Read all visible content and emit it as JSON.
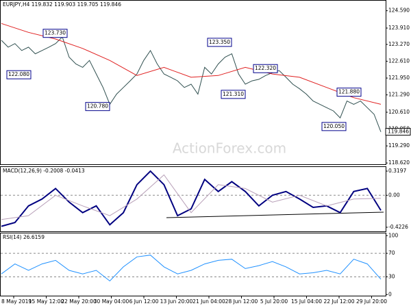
{
  "chart_data": [
    {
      "type": "line",
      "title": "EURJPY,H4  119.832 119.903 119.705 119.846",
      "watermark": "ActionForex.com",
      "ylim": [
        118.57,
        125.01
      ],
      "yticks": [
        {
          "value": 124.59,
          "label": "124.590"
        },
        {
          "value": 123.91,
          "label": "123.910"
        },
        {
          "value": 123.27,
          "label": "123.270"
        },
        {
          "value": 122.61,
          "label": "122.610"
        },
        {
          "value": 121.95,
          "label": "121.950"
        },
        {
          "value": 121.29,
          "label": "121.290"
        },
        {
          "value": 120.61,
          "label": "120.610"
        },
        {
          "value": 119.95,
          "label": "119.950"
        },
        {
          "value": 119.29,
          "label": "119.290"
        },
        {
          "value": 118.62,
          "label": "118.620"
        }
      ],
      "last_price": {
        "value": 119.846,
        "label": "119.846"
      },
      "series": [
        {
          "color": "#2f4f4f",
          "values": [
            123.43,
            123.16,
            123.3,
            123.03,
            123.16,
            122.9,
            123.03,
            123.16,
            123.3,
            123.56,
            122.77,
            122.5,
            122.37,
            122.64,
            122.11,
            121.58,
            120.92,
            121.32,
            121.58,
            121.84,
            122.11,
            122.64,
            123.03,
            122.5,
            122.11,
            121.98,
            121.84,
            121.58,
            121.71,
            121.32,
            122.37,
            122.11,
            122.5,
            122.77,
            122.9,
            122.11,
            121.71,
            121.84,
            121.9,
            122.05,
            122.16,
            122.24,
            121.98,
            121.71,
            121.53,
            121.32,
            121.05,
            120.92,
            120.79,
            120.66,
            120.39,
            121.05,
            120.92,
            121.05,
            120.79,
            120.53,
            119.84
          ]
        },
        {
          "color": "#e02020",
          "values": [
            124.09,
            123.74,
            123.48,
            123.11,
            122.64,
            122.05,
            122.37,
            121.98,
            122.05,
            122.37,
            122.11,
            121.98,
            121.58,
            121.18,
            120.92
          ]
        }
      ],
      "annotations": [
        {
          "value": 123.73,
          "label": "123.730"
        },
        {
          "value": 122.08,
          "label": "122.080"
        },
        {
          "value": 120.78,
          "label": "120.780"
        },
        {
          "value": 123.35,
          "label": "123.350"
        },
        {
          "value": 121.31,
          "label": "121.310"
        },
        {
          "value": 122.32,
          "label": "122.320"
        },
        {
          "value": 121.88,
          "label": "121.880"
        },
        {
          "value": 120.05,
          "label": "120.050"
        }
      ]
    },
    {
      "type": "line",
      "title": "MACD(12,26,9) -0.2008 -0.0413",
      "ylim": [
        -0.477,
        0.383
      ],
      "yticks": [
        0.3197,
        {
          "value": 0,
          "label": "0.00"
        },
        -0.4226
      ],
      "series": [
        {
          "color": "#000080",
          "values": [
            -0.41,
            -0.36,
            -0.14,
            -0.05,
            0.09,
            -0.09,
            -0.23,
            -0.14,
            -0.39,
            -0.23,
            0.14,
            0.32,
            0.14,
            -0.27,
            -0.18,
            0.21,
            0.05,
            0.18,
            0.05,
            -0.14,
            0,
            0.05,
            -0.05,
            -0.16,
            -0.14,
            -0.23,
            0.05,
            0.09,
            -0.2
          ]
        },
        {
          "color": "#b8a0b8",
          "values": [
            -0.32,
            -0.27,
            0,
            -0.14,
            -0.27,
            -0.05,
            0.27,
            -0.23,
            0.14,
            0.09,
            -0.09,
            0,
            -0.14,
            -0.05,
            -0.04
          ]
        }
      ]
    },
    {
      "type": "line",
      "title": "RSI(14) 26.6159",
      "ylim": [
        -2,
        105
      ],
      "yticks": [
        100,
        70,
        30,
        0
      ],
      "series": [
        {
          "color": "#1e90ff",
          "values": [
            35,
            52,
            41,
            52,
            58,
            41,
            35,
            41,
            23,
            47,
            64,
            67,
            47,
            35,
            41,
            52,
            58,
            60,
            44,
            49,
            56,
            47,
            35,
            37,
            41,
            35,
            60,
            52,
            26
          ]
        }
      ],
      "xtick_labels": [
        "8 May 2019",
        "15 May 12:00",
        "22 May 20:00",
        "30 May 04:00",
        "6 Jun 12:00",
        "13 Jun 20:00",
        "21 Jun 04:00",
        "28 Jun 12:00",
        "5 Jul 20:00",
        "15 Jul 04:00",
        "22 Jul 12:00",
        "29 Jul 20:00"
      ]
    }
  ]
}
